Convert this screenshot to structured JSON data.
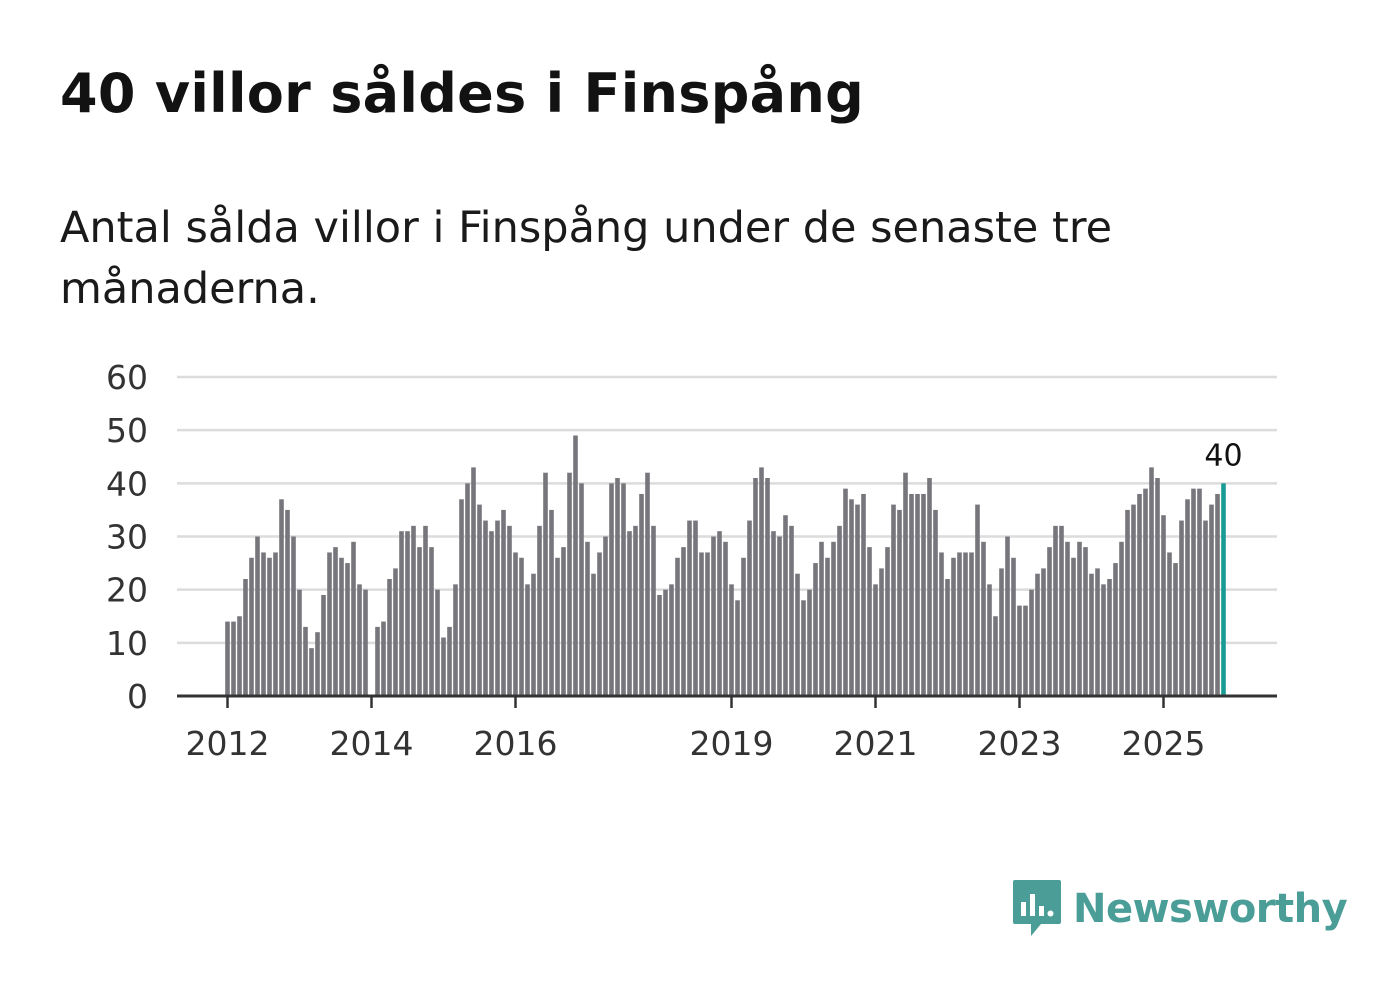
{
  "header": {
    "title": "40 villor såldes i Finspång",
    "subtitle": "Antal sålda villor i Finspång under de senaste tre månaderna."
  },
  "brand": {
    "name": "Newsworthy",
    "logo_icon": "newsworthy-bar-icon"
  },
  "colors": {
    "bar": "#77767c",
    "highlight": "#1a9a94",
    "grid": "#dcdcdc",
    "axis": "#333333",
    "brand": "#4a9e97"
  },
  "chart_data": {
    "type": "bar",
    "title": "40 villor såldes i Finspång",
    "subtitle": "Antal sålda villor i Finspång under de senaste tre månaderna.",
    "xlabel": "",
    "ylabel": "",
    "ylim": [
      0,
      60
    ],
    "yticks": [
      0,
      10,
      20,
      30,
      40,
      50,
      60
    ],
    "xtick_labels": [
      "2012",
      "2014",
      "2016",
      "2019",
      "2021",
      "2023",
      "2025"
    ],
    "xtick_index": [
      0,
      24,
      48,
      84,
      108,
      132,
      156
    ],
    "grid": true,
    "highlight_last": true,
    "annotation": "40",
    "values": [
      14,
      14,
      15,
      22,
      26,
      30,
      27,
      26,
      27,
      37,
      35,
      30,
      20,
      13,
      9,
      12,
      19,
      27,
      28,
      26,
      25,
      29,
      21,
      20,
      0,
      13,
      14,
      22,
      24,
      31,
      31,
      32,
      28,
      32,
      28,
      20,
      11,
      13,
      21,
      37,
      40,
      43,
      36,
      33,
      31,
      33,
      35,
      32,
      27,
      26,
      21,
      23,
      32,
      42,
      35,
      26,
      28,
      42,
      49,
      40,
      29,
      23,
      27,
      30,
      40,
      41,
      40,
      31,
      32,
      38,
      42,
      32,
      19,
      20,
      21,
      26,
      28,
      33,
      33,
      27,
      27,
      30,
      31,
      29,
      21,
      18,
      26,
      33,
      41,
      43,
      41,
      31,
      30,
      34,
      32,
      23,
      18,
      20,
      25,
      29,
      26,
      29,
      32,
      39,
      37,
      36,
      38,
      28,
      21,
      24,
      28,
      36,
      35,
      42,
      38,
      38,
      38,
      41,
      35,
      27,
      22,
      26,
      27,
      27,
      27,
      36,
      29,
      21,
      15,
      24,
      30,
      26,
      17,
      17,
      20,
      23,
      24,
      28,
      32,
      32,
      29,
      26,
      29,
      28,
      23,
      24,
      21,
      22,
      25,
      29,
      35,
      36,
      38,
      39,
      43,
      41,
      34,
      27,
      25,
      33,
      37,
      39,
      39,
      33,
      36,
      38,
      40
    ]
  }
}
